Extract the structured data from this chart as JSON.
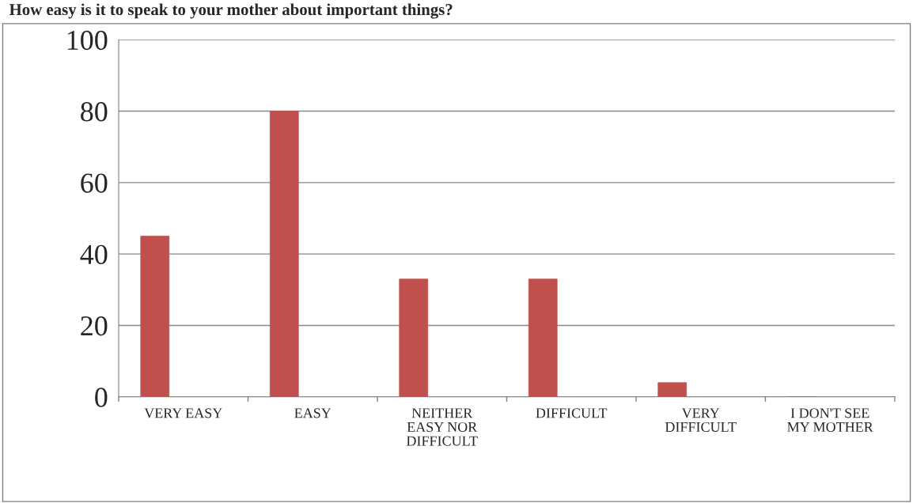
{
  "chart_data": {
    "type": "bar",
    "title": "How easy is it to speak to your mother about important things?",
    "categories": [
      "VERY EASY",
      "EASY",
      "NEITHER\nEASY NOR\nDIFFICULT",
      "DIFFICULT",
      "VERY\nDIFFICULT",
      "I DON'T SEE\nMY MOTHER"
    ],
    "values": [
      45,
      80,
      33,
      33,
      4,
      0
    ],
    "color": "#c0504d",
    "ylim": [
      0,
      100
    ],
    "yticks": [
      0,
      20,
      40,
      60,
      80,
      100
    ],
    "grid": "y",
    "legend": false
  }
}
